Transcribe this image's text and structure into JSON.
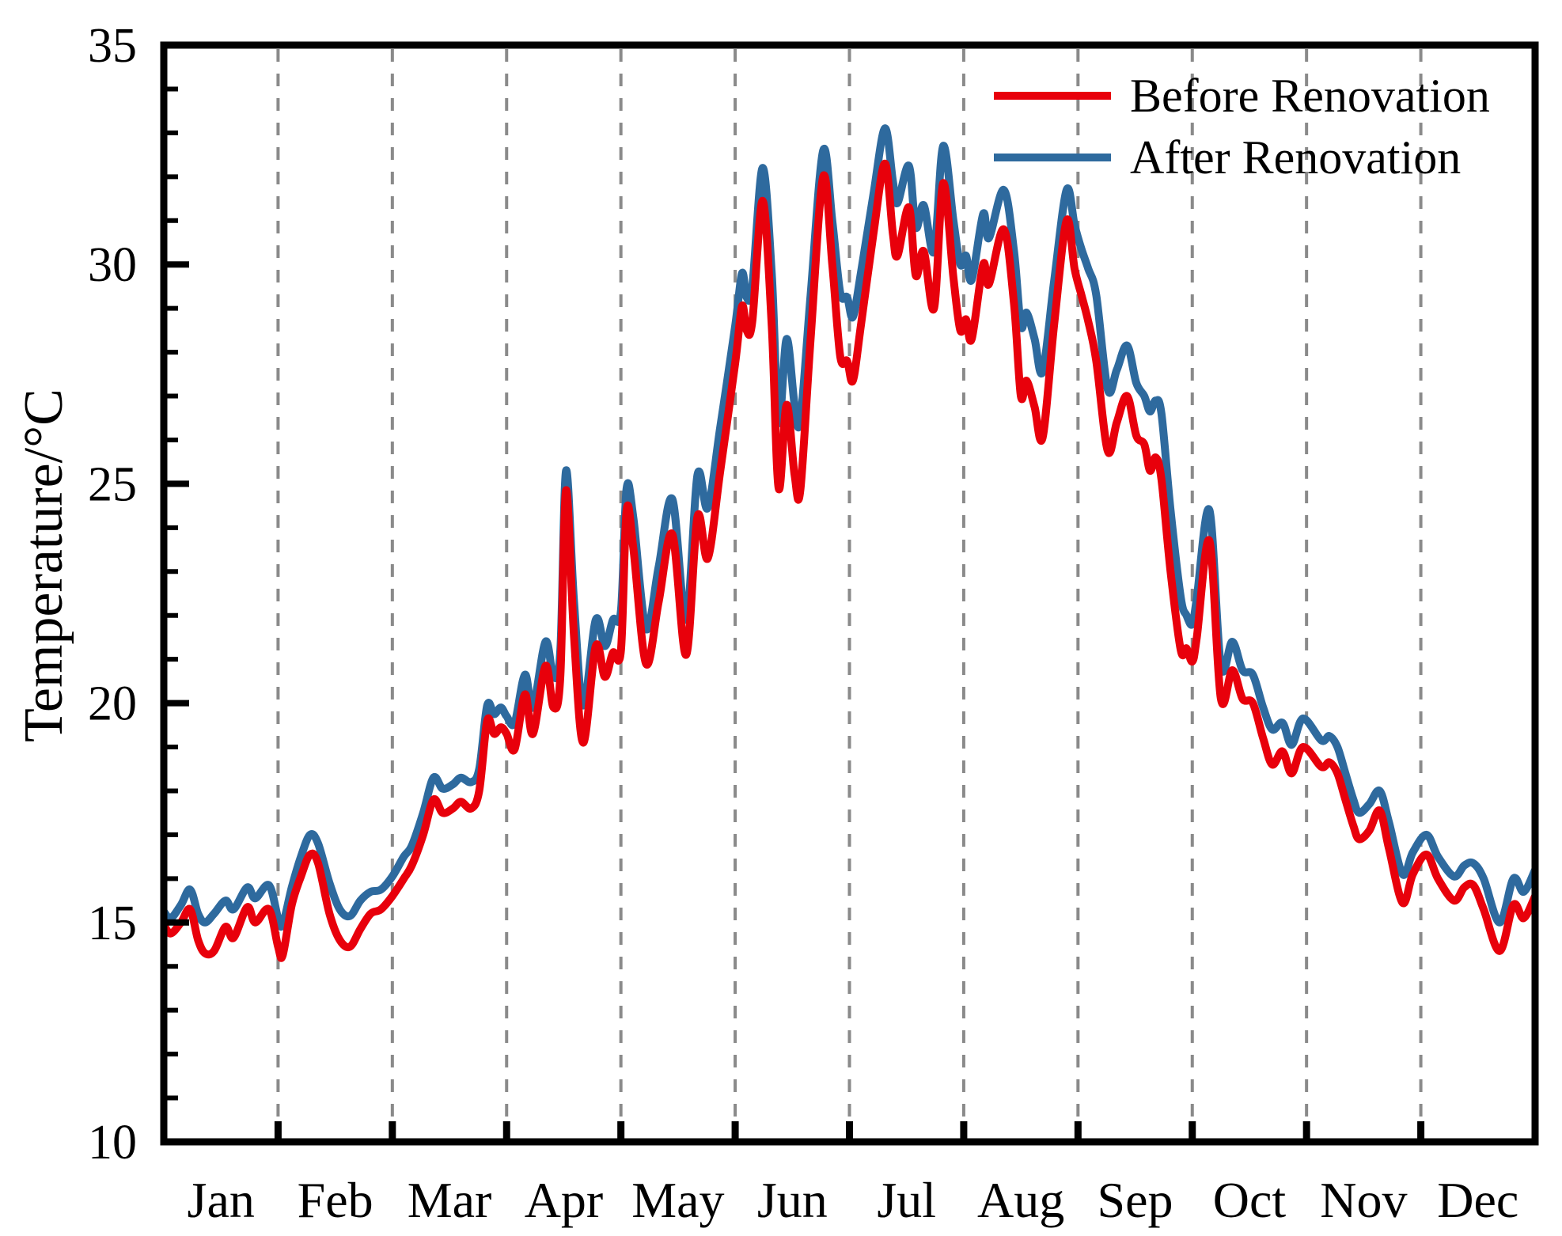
{
  "chart_data": {
    "type": "line",
    "title": "",
    "xlabel": "",
    "ylabel": "Temperature/°C",
    "ylim": [
      10,
      35
    ],
    "yticks": [
      10,
      15,
      20,
      25,
      30,
      35
    ],
    "y_minor_step": 1,
    "x_range_months": [
      0,
      12
    ],
    "month_labels": [
      "Jan",
      "Feb",
      "Mar",
      "Apr",
      "May",
      "Jun",
      "Jul",
      "Aug",
      "Sep",
      "Oct",
      "Nov",
      "Dec"
    ],
    "grid": "vertical dashed lines at month boundaries",
    "legend_position": "top-right inside plot",
    "axis_color": "#000000",
    "gridline_color": "#8a8a8a",
    "x_unit": "month fraction (0 = start of Jan, 12 = end of Dec)",
    "x": [
      0.0,
      0.06,
      0.15,
      0.23,
      0.3,
      0.36,
      0.44,
      0.54,
      0.61,
      0.73,
      0.8,
      0.92,
      1.0,
      1.04,
      1.12,
      1.2,
      1.28,
      1.35,
      1.45,
      1.54,
      1.63,
      1.72,
      1.81,
      1.9,
      2.0,
      2.1,
      2.17,
      2.27,
      2.36,
      2.44,
      2.53,
      2.6,
      2.69,
      2.76,
      2.83,
      2.89,
      2.95,
      3.0,
      3.07,
      3.16,
      3.23,
      3.34,
      3.41,
      3.47,
      3.52,
      3.59,
      3.67,
      3.78,
      3.86,
      3.93,
      4.0,
      4.05,
      4.11,
      4.22,
      4.33,
      4.45,
      4.57,
      4.67,
      4.76,
      4.87,
      5.0,
      5.06,
      5.1,
      5.15,
      5.24,
      5.32,
      5.38,
      5.45,
      5.52,
      5.57,
      5.66,
      5.77,
      5.85,
      5.92,
      5.98,
      6.03,
      6.1,
      6.21,
      6.31,
      6.38,
      6.42,
      6.52,
      6.58,
      6.65,
      6.74,
      6.82,
      6.91,
      6.97,
      7.02,
      7.07,
      7.17,
      7.22,
      7.35,
      7.44,
      7.5,
      7.55,
      7.62,
      7.69,
      7.79,
      7.9,
      7.97,
      8.03,
      8.09,
      8.16,
      8.26,
      8.34,
      8.43,
      8.51,
      8.58,
      8.63,
      8.68,
      8.73,
      8.81,
      8.9,
      8.95,
      9.0,
      9.04,
      9.15,
      9.25,
      9.35,
      9.44,
      9.53,
      9.62,
      9.7,
      9.79,
      9.87,
      9.97,
      10.13,
      10.2,
      10.27,
      10.34,
      10.41,
      10.46,
      10.55,
      10.64,
      10.72,
      10.84,
      10.93,
      11.05,
      11.15,
      11.29,
      11.38,
      11.46,
      11.55,
      11.69,
      11.81,
      11.9,
      12.0
    ],
    "series": [
      {
        "name": "Before Renovation",
        "color": "#e8000b",
        "values": [
          14.95,
          14.75,
          15.0,
          15.3,
          14.6,
          14.3,
          14.35,
          14.9,
          14.65,
          15.35,
          15.0,
          15.3,
          14.45,
          14.25,
          15.4,
          16.05,
          16.55,
          16.35,
          15.2,
          14.6,
          14.45,
          14.85,
          15.2,
          15.3,
          15.6,
          16.0,
          16.3,
          17.0,
          17.8,
          17.5,
          17.6,
          17.75,
          17.6,
          18.0,
          19.6,
          19.3,
          19.45,
          19.3,
          18.95,
          20.2,
          19.3,
          20.85,
          19.9,
          20.6,
          24.85,
          21.5,
          19.1,
          21.3,
          20.6,
          21.15,
          21.2,
          24.4,
          23.5,
          20.9,
          22.3,
          23.85,
          21.1,
          24.25,
          23.3,
          25.3,
          27.75,
          29.05,
          28.5,
          28.7,
          31.45,
          28.6,
          24.9,
          26.8,
          25.2,
          24.85,
          28.3,
          32.0,
          30.0,
          27.9,
          27.8,
          27.35,
          28.6,
          30.7,
          32.3,
          30.7,
          30.2,
          31.3,
          29.75,
          30.3,
          29.0,
          31.85,
          29.7,
          28.5,
          28.75,
          28.3,
          30.0,
          29.55,
          30.8,
          29.1,
          27.0,
          27.35,
          26.75,
          26.05,
          28.6,
          31.0,
          29.9,
          29.3,
          28.7,
          27.8,
          25.75,
          26.4,
          27.0,
          26.1,
          25.9,
          25.3,
          25.6,
          25.1,
          23.0,
          21.2,
          21.25,
          20.95,
          21.5,
          23.7,
          20.1,
          20.75,
          20.1,
          20.0,
          19.2,
          18.6,
          18.9,
          18.4,
          19.0,
          18.55,
          18.65,
          18.4,
          17.8,
          17.2,
          16.9,
          17.1,
          17.55,
          16.7,
          15.45,
          16.1,
          16.55,
          16.0,
          15.5,
          15.8,
          15.85,
          15.3,
          14.35,
          15.4,
          15.1,
          15.6
        ]
      },
      {
        "name": "After Renovation",
        "color": "#2e6a9e",
        "values": [
          15.25,
          15.1,
          15.4,
          15.75,
          15.2,
          15.0,
          15.2,
          15.5,
          15.3,
          15.8,
          15.55,
          15.85,
          15.1,
          14.95,
          15.8,
          16.5,
          17.0,
          16.8,
          15.9,
          15.3,
          15.15,
          15.5,
          15.7,
          15.75,
          16.05,
          16.5,
          16.75,
          17.5,
          18.3,
          18.05,
          18.15,
          18.3,
          18.2,
          18.5,
          19.95,
          19.75,
          19.9,
          19.7,
          19.55,
          20.65,
          19.9,
          21.4,
          20.6,
          21.2,
          25.3,
          22.3,
          19.95,
          21.9,
          21.3,
          21.9,
          22.1,
          24.9,
          24.2,
          21.7,
          23.1,
          24.65,
          21.9,
          25.2,
          24.45,
          26.3,
          28.6,
          29.8,
          29.25,
          29.5,
          32.2,
          29.8,
          26.4,
          28.3,
          26.8,
          26.45,
          29.3,
          32.6,
          31.0,
          29.35,
          29.25,
          28.8,
          29.8,
          31.6,
          33.1,
          31.9,
          31.4,
          32.25,
          30.85,
          31.35,
          30.3,
          32.7,
          31.0,
          30.0,
          30.2,
          29.65,
          31.15,
          30.6,
          31.7,
          30.3,
          28.6,
          28.9,
          28.3,
          27.55,
          29.6,
          31.7,
          30.9,
          30.35,
          29.9,
          29.3,
          27.15,
          27.6,
          28.15,
          27.3,
          27.0,
          26.65,
          26.9,
          26.6,
          24.4,
          22.4,
          22.0,
          21.8,
          22.4,
          24.4,
          20.85,
          21.4,
          20.75,
          20.65,
          19.9,
          19.4,
          19.55,
          19.05,
          19.65,
          19.15,
          19.25,
          19.0,
          18.4,
          17.8,
          17.5,
          17.7,
          18.0,
          17.3,
          16.1,
          16.6,
          17.0,
          16.5,
          16.05,
          16.3,
          16.35,
          16.0,
          15.0,
          16.0,
          15.7,
          16.2
        ]
      }
    ]
  }
}
